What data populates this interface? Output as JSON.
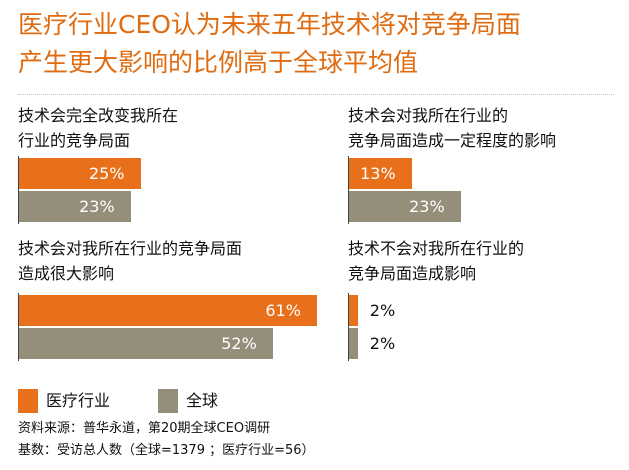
{
  "title": {
    "line1": "医疗行业CEO认为未来五年技术将对竞争局面",
    "line2": "产生更大影响的比例高于全球平均值"
  },
  "colors": {
    "medical": "#e8701a",
    "global": "#958e7a",
    "title": "#e06c12"
  },
  "legend": {
    "medical": "医疗行业",
    "global": "全球"
  },
  "source": "资料来源：普华永道，第20期全球CEO调研",
  "base": "基数：受访总人数（全球=1379 ；医疗行业=56）",
  "chart_data": {
    "type": "bar",
    "orientation": "horizontal",
    "xlim": [
      0,
      100
    ],
    "series": [
      {
        "name": "医疗行业",
        "key": "medical"
      },
      {
        "name": "全球",
        "key": "global"
      }
    ],
    "panels": [
      {
        "id": "p1",
        "label_lines": [
          "技术会完全改变我所在",
          "行业的竞争局面"
        ],
        "values": {
          "medical": 25,
          "global": 23
        }
      },
      {
        "id": "p2",
        "label_lines": [
          "技术会对我所在行业的",
          "竞争局面造成一定程度的影响"
        ],
        "values": {
          "medical": 13,
          "global": 23
        }
      },
      {
        "id": "p3",
        "label_lines": [
          "技术会对我所在行业的竞争局面",
          "造成很大影响"
        ],
        "values": {
          "medical": 61,
          "global": 52
        }
      },
      {
        "id": "p4",
        "label_lines": [
          "技术不会对我所在行业的",
          "竞争局面造成影响"
        ],
        "values": {
          "medical": 2,
          "global": 2
        }
      }
    ]
  }
}
